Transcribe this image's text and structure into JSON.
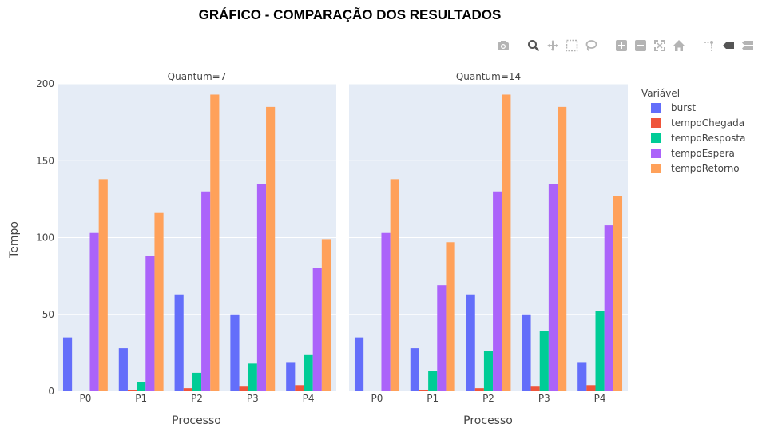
{
  "modebar": {
    "icons": [
      "camera-icon",
      "zoom-icon",
      "pan-icon",
      "box-select-icon",
      "lasso-icon",
      "zoom-in-icon",
      "zoom-out-icon",
      "autoscale-icon",
      "reset-home-icon",
      "spike-lines-icon",
      "hover-closest-icon",
      "hover-compare-icon"
    ]
  },
  "chart_data": {
    "type": "bar",
    "title": "GRÁFICO - COMPARAÇÃO DOS RESULTADOS",
    "xlabel": "Processo",
    "ylabel": "Tempo",
    "ylim": [
      0,
      200
    ],
    "yticks": [
      0,
      50,
      100,
      150,
      200
    ],
    "grid": true,
    "legend_placement": "right",
    "legend_title": "Variável",
    "categories": [
      "P0",
      "P1",
      "P2",
      "P3",
      "P4"
    ],
    "series_colors": {
      "burst": "#636efa",
      "tempoChegada": "#ef553b",
      "tempoResposta": "#00cc96",
      "tempoEspera": "#ab63fa",
      "tempoRetorno": "#ffa15a"
    },
    "panels": [
      {
        "facet_title": "Quantum=7",
        "series": [
          {
            "name": "burst",
            "values": [
              35,
              28,
              63,
              50,
              19
            ]
          },
          {
            "name": "tempoChegada",
            "values": [
              0,
              1,
              2,
              3,
              4
            ]
          },
          {
            "name": "tempoResposta",
            "values": [
              0,
              6,
              12,
              18,
              24
            ]
          },
          {
            "name": "tempoEspera",
            "values": [
              103,
              88,
              130,
              135,
              80
            ]
          },
          {
            "name": "tempoRetorno",
            "values": [
              138,
              116,
              193,
              185,
              99
            ]
          }
        ]
      },
      {
        "facet_title": "Quantum=14",
        "series": [
          {
            "name": "burst",
            "values": [
              35,
              28,
              63,
              50,
              19
            ]
          },
          {
            "name": "tempoChegada",
            "values": [
              0,
              1,
              2,
              3,
              4
            ]
          },
          {
            "name": "tempoResposta",
            "values": [
              0,
              13,
              26,
              39,
              52
            ]
          },
          {
            "name": "tempoEspera",
            "values": [
              103,
              69,
              130,
              135,
              108
            ]
          },
          {
            "name": "tempoRetorno",
            "values": [
              138,
              97,
              193,
              185,
              127
            ]
          }
        ]
      }
    ]
  }
}
